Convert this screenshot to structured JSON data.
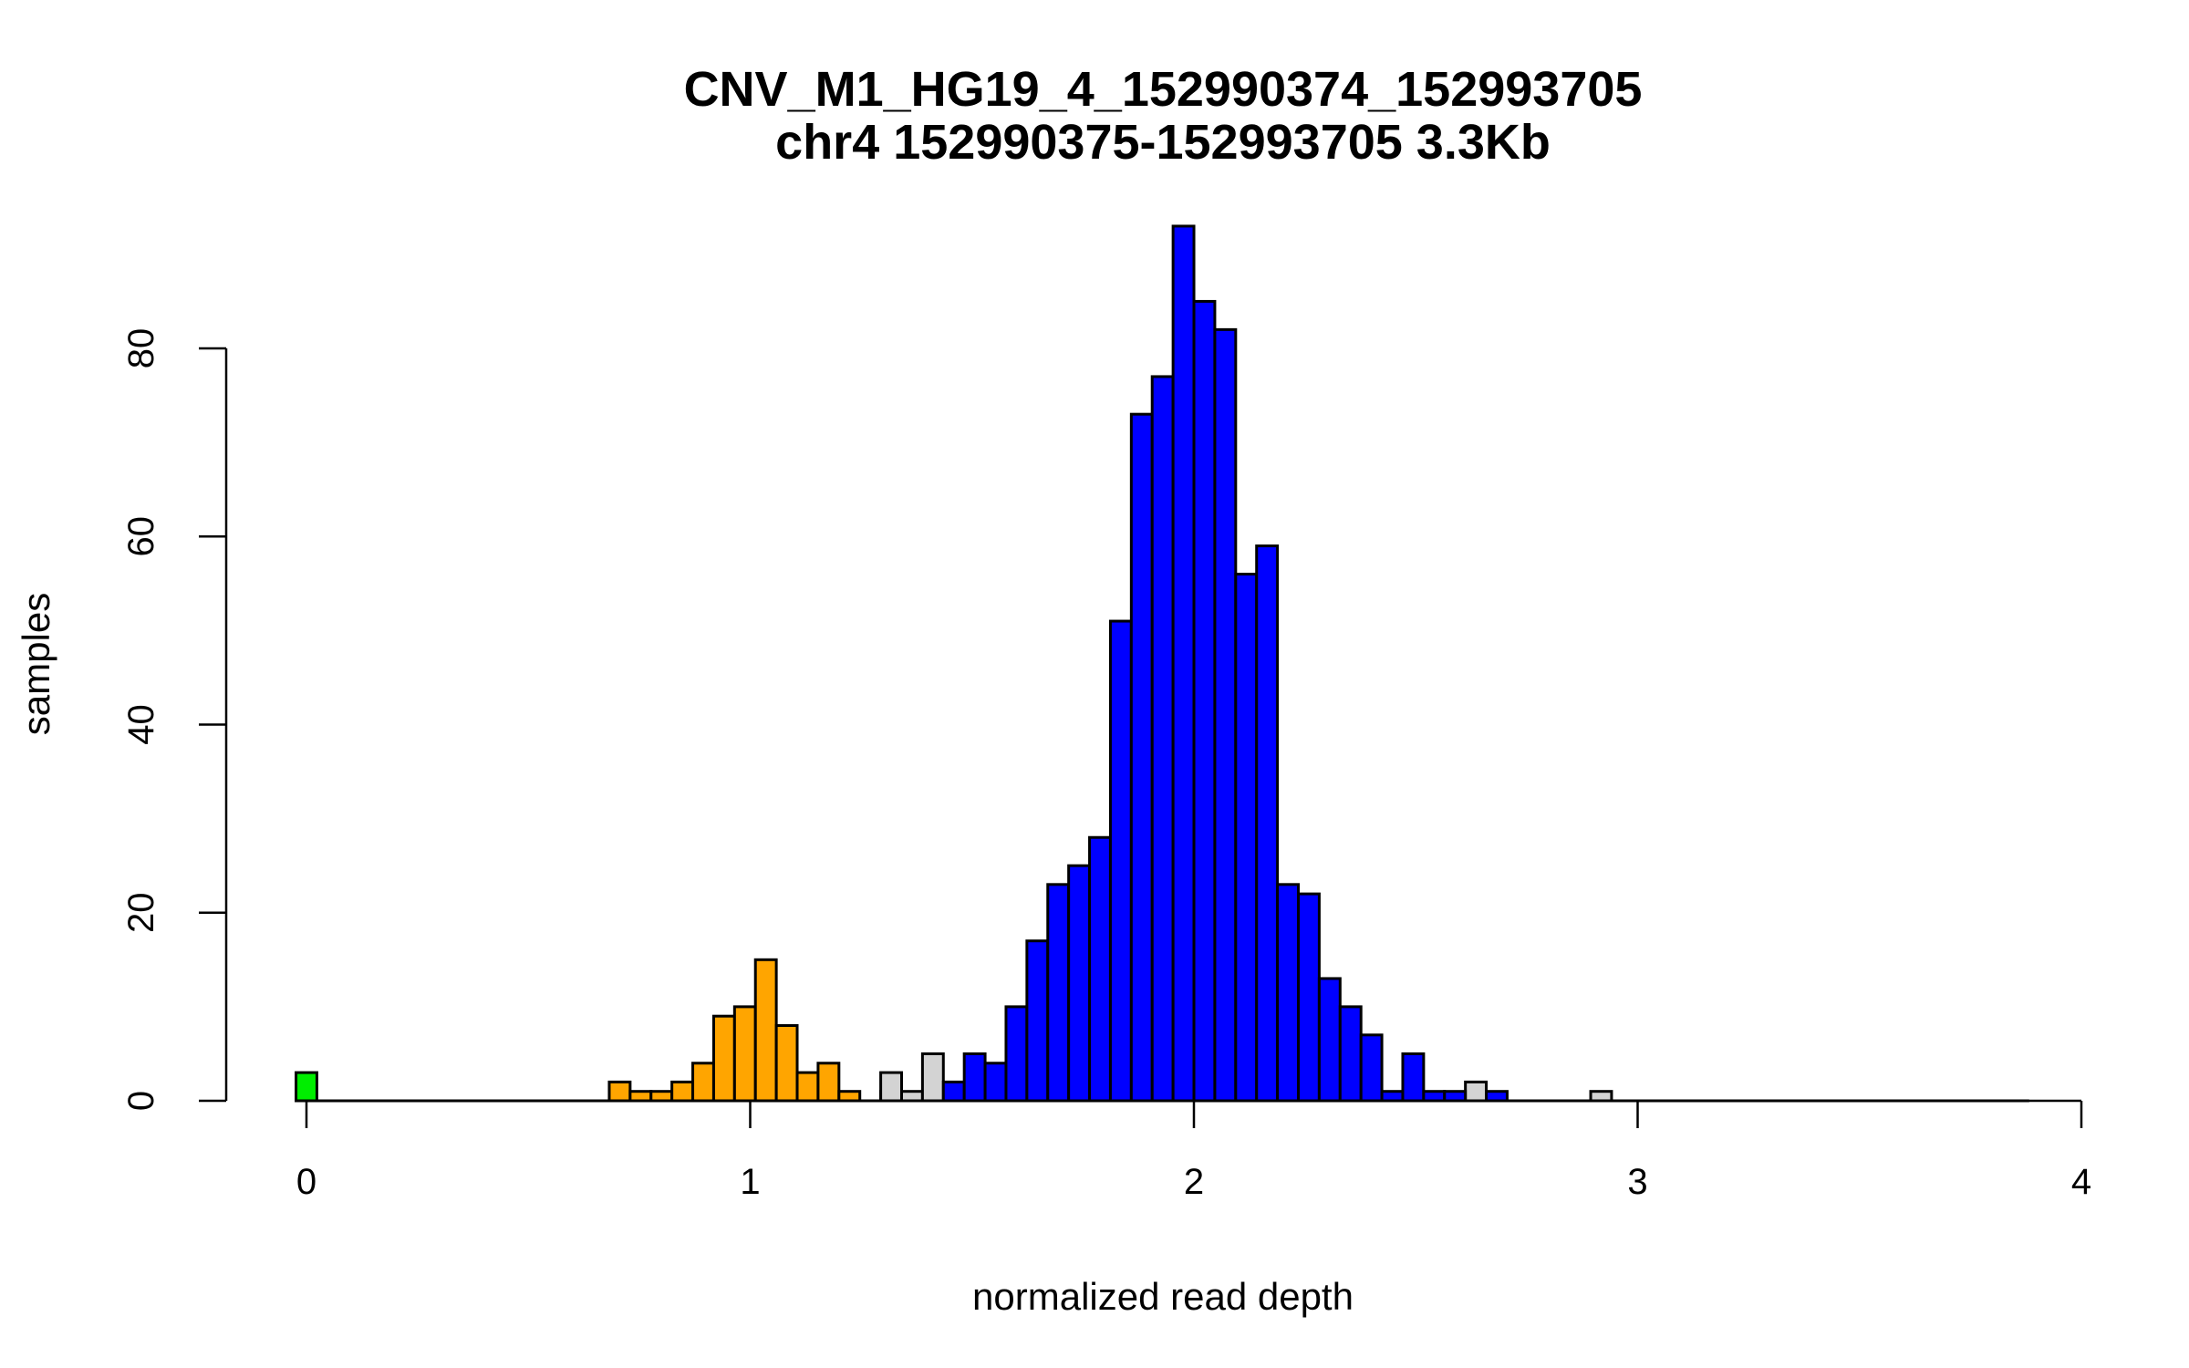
{
  "chart_data": {
    "type": "bar",
    "subtype": "histogram",
    "title": "CNV_M1_HG19_4_152990374_152993705",
    "subtitle": "chr4 152990375-152993705 3.3Kb",
    "xlabel": "normalized read depth",
    "ylabel": "samples",
    "xlim": [
      0,
      4
    ],
    "ylim": [
      0,
      80
    ],
    "x_ticks": [
      "0",
      "1",
      "2",
      "3",
      "4"
    ],
    "y_ticks": [
      "0",
      "20",
      "40",
      "60",
      "80"
    ],
    "bin_width": 0.04706,
    "bin_count": 83,
    "grid": false,
    "series": [
      {
        "name": "green",
        "color": "#00ee00",
        "bins": [
          {
            "k": 0,
            "v": 3
          }
        ]
      },
      {
        "name": "orange",
        "color": "#ffa500",
        "bins": [
          {
            "k": 15,
            "v": 2
          },
          {
            "k": 16,
            "v": 1
          },
          {
            "k": 17,
            "v": 1
          },
          {
            "k": 18,
            "v": 2
          },
          {
            "k": 19,
            "v": 4
          },
          {
            "k": 20,
            "v": 9
          },
          {
            "k": 21,
            "v": 10
          },
          {
            "k": 22,
            "v": 15
          },
          {
            "k": 23,
            "v": 8
          },
          {
            "k": 24,
            "v": 3
          },
          {
            "k": 25,
            "v": 4
          },
          {
            "k": 26,
            "v": 1
          },
          {
            "k": 28,
            "v": 1
          }
        ]
      },
      {
        "name": "grey",
        "color": "#d3d3d3",
        "bins": [
          {
            "k": 28,
            "v": 3
          },
          {
            "k": 29,
            "v": 1
          },
          {
            "k": 30,
            "v": 5
          },
          {
            "k": 56,
            "v": 2
          },
          {
            "k": 62,
            "v": 1
          }
        ]
      },
      {
        "name": "blue",
        "color": "#0000ff",
        "bins": [
          {
            "k": 31,
            "v": 2
          },
          {
            "k": 32,
            "v": 5
          },
          {
            "k": 33,
            "v": 4
          },
          {
            "k": 34,
            "v": 10
          },
          {
            "k": 35,
            "v": 17
          },
          {
            "k": 36,
            "v": 23
          },
          {
            "k": 37,
            "v": 25
          },
          {
            "k": 38,
            "v": 28
          },
          {
            "k": 39,
            "v": 51
          },
          {
            "k": 40,
            "v": 73
          },
          {
            "k": 41,
            "v": 77
          },
          {
            "k": 42,
            "v": 93
          },
          {
            "k": 43,
            "v": 85
          },
          {
            "k": 44,
            "v": 82
          },
          {
            "k": 45,
            "v": 56
          },
          {
            "k": 46,
            "v": 59
          },
          {
            "k": 47,
            "v": 23
          },
          {
            "k": 48,
            "v": 22
          },
          {
            "k": 49,
            "v": 13
          },
          {
            "k": 50,
            "v": 10
          },
          {
            "k": 51,
            "v": 7
          },
          {
            "k": 52,
            "v": 1
          },
          {
            "k": 53,
            "v": 5
          },
          {
            "k": 54,
            "v": 1
          },
          {
            "k": 55,
            "v": 1
          },
          {
            "k": 57,
            "v": 1
          }
        ]
      }
    ]
  }
}
